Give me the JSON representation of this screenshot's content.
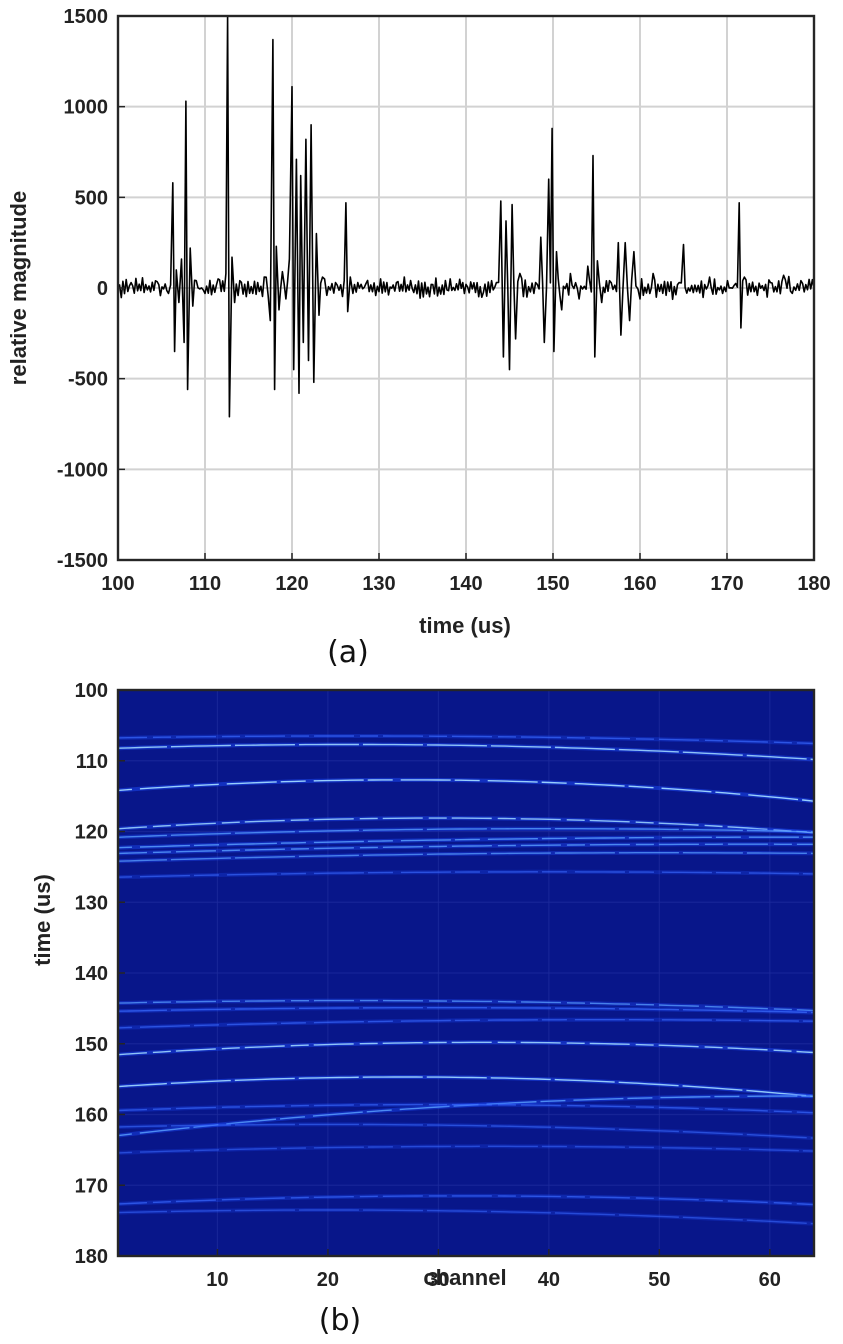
{
  "chart_data": [
    {
      "panel": "(a)",
      "type": "line",
      "xlabel": "time (us)",
      "ylabel": "relative magnitude",
      "xlim": [
        100,
        180
      ],
      "ylim": [
        -1500,
        1500
      ],
      "xticks": [
        100,
        110,
        120,
        130,
        140,
        150,
        160,
        170,
        180
      ],
      "yticks": [
        1500,
        1000,
        500,
        0,
        -500,
        -1000,
        -1500
      ],
      "grid": true,
      "line_color": "#000000",
      "series": [
        {
          "x": [
            100.0,
            101.5,
            103.0,
            104.5,
            105.8,
            106.3,
            106.5,
            106.7,
            107.0,
            107.3,
            107.6,
            107.8,
            108.0,
            108.3,
            108.6,
            109.0,
            110.0,
            111.5,
            112.4,
            112.6,
            112.8,
            113.1,
            113.4,
            114.0,
            115.5,
            116.8,
            117.5,
            117.8,
            118.0,
            118.2,
            118.5,
            118.9,
            119.3,
            119.7,
            120.0,
            120.2,
            120.5,
            120.8,
            121.0,
            121.3,
            121.6,
            121.9,
            122.2,
            122.5,
            122.8,
            123.1,
            123.5,
            124.0,
            125.0,
            126.2,
            126.4,
            126.7,
            127.0,
            128.5,
            130.0,
            132.0,
            134.0,
            136.0,
            138.0,
            140.0,
            142.0,
            143.5,
            144.0,
            144.3,
            144.6,
            145.0,
            145.3,
            145.7,
            146.2,
            147.0,
            148.0,
            148.6,
            149.0,
            149.5,
            149.9,
            150.1,
            150.4,
            151.0,
            152.0,
            153.0,
            154.0,
            154.6,
            154.8,
            155.1,
            155.6,
            156.5,
            157.5,
            157.8,
            158.3,
            158.8,
            159.3,
            160.0,
            161.5,
            163.0,
            164.5,
            165.0,
            166.5,
            168.0,
            169.5,
            171.0,
            171.4,
            171.6,
            172.0,
            173.5,
            175.0,
            176.5,
            177.5,
            178.5,
            180.0
          ],
          "y": [
            0,
            30,
            -25,
            35,
            -30,
            580,
            -350,
            100,
            -80,
            160,
            -300,
            1030,
            -560,
            220,
            -100,
            40,
            -30,
            50,
            80,
            1500,
            -710,
            170,
            -80,
            40,
            -30,
            60,
            -180,
            1370,
            -560,
            230,
            -120,
            90,
            -60,
            160,
            1110,
            -450,
            710,
            -580,
            620,
            -300,
            820,
            -400,
            900,
            -520,
            300,
            -150,
            60,
            -40,
            30,
            470,
            -130,
            60,
            -30,
            25,
            -20,
            30,
            -25,
            20,
            -15,
            20,
            -25,
            30,
            480,
            -380,
            370,
            -450,
            460,
            -280,
            80,
            -50,
            30,
            280,
            -300,
            600,
            880,
            -350,
            200,
            -120,
            80,
            -60,
            120,
            730,
            -380,
            150,
            -80,
            40,
            250,
            -260,
            250,
            -180,
            200,
            -60,
            80,
            -40,
            30,
            240,
            -20,
            60,
            -30,
            25,
            470,
            -220,
            60,
            -40,
            30,
            70,
            -30,
            40,
            0
          ]
        }
      ]
    },
    {
      "panel": "(b)",
      "type": "heatmap",
      "xlabel": "channel",
      "ylabel": "time (us)",
      "xlim": [
        1,
        64
      ],
      "ylim": [
        100,
        180
      ],
      "xticks": [
        10,
        20,
        30,
        40,
        50,
        60
      ],
      "yticks": [
        100,
        110,
        120,
        130,
        140,
        150,
        160,
        170,
        180
      ],
      "colormap": "jet",
      "background_color": "#08168a",
      "echoes": [
        {
          "t0": 106.5,
          "peak_channel": 22,
          "curvature": 0.0006,
          "intensity": 0.45
        },
        {
          "t0": 107.7,
          "peak_channel": 22,
          "curvature": 0.0012,
          "intensity": 0.8
        },
        {
          "t0": 112.7,
          "peak_channel": 27,
          "curvature": 0.0022,
          "intensity": 0.9
        },
        {
          "t0": 118.1,
          "peak_channel": 30,
          "curvature": 0.0018,
          "intensity": 0.75
        },
        {
          "t0": 119.6,
          "peak_channel": 40,
          "curvature": 0.0008,
          "intensity": 0.6
        },
        {
          "t0": 120.8,
          "peak_channel": 62,
          "curvature": 0.0004,
          "intensity": 0.7
        },
        {
          "t0": 121.8,
          "peak_channel": 58,
          "curvature": 0.0004,
          "intensity": 0.65
        },
        {
          "t0": 123.0,
          "peak_channel": 50,
          "curvature": 0.0005,
          "intensity": 0.55
        },
        {
          "t0": 125.7,
          "peak_channel": 40,
          "curvature": 0.0005,
          "intensity": 0.35
        },
        {
          "t0": 143.9,
          "peak_channel": 22,
          "curvature": 0.0008,
          "intensity": 0.55
        },
        {
          "t0": 144.9,
          "peak_channel": 30,
          "curvature": 0.0006,
          "intensity": 0.5
        },
        {
          "t0": 146.6,
          "peak_channel": 45,
          "curvature": 0.0006,
          "intensity": 0.4
        },
        {
          "t0": 149.8,
          "peak_channel": 34,
          "curvature": 0.0016,
          "intensity": 0.8
        },
        {
          "t0": 154.7,
          "peak_channel": 27,
          "curvature": 0.002,
          "intensity": 0.85
        },
        {
          "t0": 157.4,
          "peak_channel": 62,
          "curvature": 0.0015,
          "intensity": 0.7
        },
        {
          "t0": 158.6,
          "peak_channel": 30,
          "curvature": 0.001,
          "intensity": 0.4
        },
        {
          "t0": 161.4,
          "peak_channel": 20,
          "curvature": 0.001,
          "intensity": 0.3
        },
        {
          "t0": 164.5,
          "peak_channel": 35,
          "curvature": 0.0008,
          "intensity": 0.25
        },
        {
          "t0": 171.5,
          "peak_channel": 32,
          "curvature": 0.0012,
          "intensity": 0.45
        },
        {
          "t0": 173.5,
          "peak_channel": 20,
          "curvature": 0.001,
          "intensity": 0.25
        }
      ]
    }
  ],
  "captions": {
    "a": "(a)",
    "b": "(b)"
  }
}
